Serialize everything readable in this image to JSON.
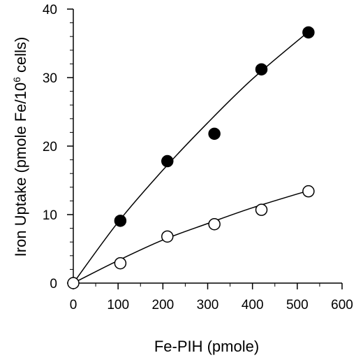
{
  "chart_data": {
    "type": "scatter",
    "xlabel": "Fe-PIH (pmole)",
    "ylabel_main": "Iron Uptake  (pmole Fe/10",
    "ylabel_sup": "6",
    "ylabel_end": " cells)",
    "xlim": [
      0,
      600
    ],
    "ylim": [
      0,
      40
    ],
    "x_ticks": [
      0,
      100,
      200,
      300,
      400,
      500,
      600
    ],
    "y_ticks": [
      0,
      10,
      20,
      30,
      40
    ],
    "x_minor_step": 50,
    "y_minor_step": 2,
    "grid": false,
    "legend": "none",
    "series": [
      {
        "marker": "filled-circle",
        "color": "#000000",
        "points": [
          {
            "x": 0,
            "y": 0
          },
          {
            "x": 105,
            "y": 9.1
          },
          {
            "x": 210,
            "y": 17.8
          },
          {
            "x": 315,
            "y": 21.8
          },
          {
            "x": 420,
            "y": 31.2
          },
          {
            "x": 525,
            "y": 36.6
          }
        ],
        "fit": [
          {
            "x": 0,
            "y": 0
          },
          {
            "x": 100,
            "y": 8.9
          },
          {
            "x": 200,
            "y": 16.5
          },
          {
            "x": 300,
            "y": 23.4
          },
          {
            "x": 400,
            "y": 29.8
          },
          {
            "x": 525,
            "y": 36.7
          }
        ]
      },
      {
        "marker": "open-circle",
        "color": "#000000",
        "points": [
          {
            "x": 0,
            "y": 0
          },
          {
            "x": 105,
            "y": 2.9
          },
          {
            "x": 210,
            "y": 6.8
          },
          {
            "x": 315,
            "y": 8.6
          },
          {
            "x": 420,
            "y": 10.7
          },
          {
            "x": 525,
            "y": 13.4
          }
        ],
        "fit": [
          {
            "x": 0,
            "y": 0
          },
          {
            "x": 100,
            "y": 3.3
          },
          {
            "x": 200,
            "y": 6.3
          },
          {
            "x": 300,
            "y": 8.7
          },
          {
            "x": 400,
            "y": 11.0
          },
          {
            "x": 525,
            "y": 13.5
          }
        ]
      }
    ]
  }
}
